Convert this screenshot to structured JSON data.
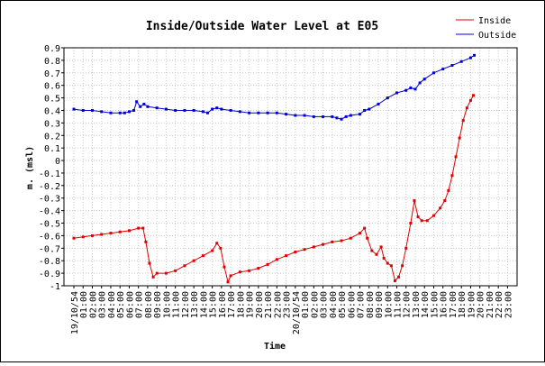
{
  "chart_data": {
    "type": "line",
    "title": "Inside/Outside Water Level at E05",
    "xlabel": "Time",
    "ylabel": "m. (msl)",
    "ylim": [
      -1,
      0.9
    ],
    "yticks": [
      0.9,
      0.8,
      0.7,
      0.6,
      0.5,
      0.4,
      0.3,
      0.2,
      0.1,
      0,
      -0.1,
      -0.2,
      -0.3,
      -0.4,
      -0.5,
      -0.6,
      -0.7,
      -0.8,
      -0.9,
      -1
    ],
    "xticks": [
      "19/10/54",
      "01:00",
      "02:00",
      "03:00",
      "04:00",
      "05:00",
      "06:00",
      "07:00",
      "08:00",
      "09:00",
      "10:00",
      "11:00",
      "12:00",
      "13:00",
      "14:00",
      "15:00",
      "16:00",
      "17:00",
      "18:00",
      "19:00",
      "20:00",
      "21:00",
      "22:00",
      "23:00",
      "20/10/54",
      "01:00",
      "02:00",
      "03:00",
      "04:00",
      "05:00",
      "06:00",
      "07:00",
      "08:00",
      "09:00",
      "10:00",
      "11:00",
      "12:00",
      "13:00",
      "14:00",
      "15:00",
      "16:00",
      "17:00",
      "18:00",
      "19:00",
      "20:00",
      "21:00",
      "22:00",
      "23:00"
    ],
    "grid": true,
    "legend_position": "top-right",
    "series": [
      {
        "name": "Inside",
        "color": "#e00000",
        "points": [
          [
            0,
            -0.62
          ],
          [
            1,
            -0.61
          ],
          [
            2,
            -0.6
          ],
          [
            3,
            -0.59
          ],
          [
            4,
            -0.58
          ],
          [
            5,
            -0.57
          ],
          [
            6,
            -0.56
          ],
          [
            7,
            -0.54
          ],
          [
            7.5,
            -0.54
          ],
          [
            7.8,
            -0.65
          ],
          [
            8.2,
            -0.82
          ],
          [
            8.6,
            -0.93
          ],
          [
            9,
            -0.9
          ],
          [
            10,
            -0.9
          ],
          [
            11,
            -0.88
          ],
          [
            12,
            -0.84
          ],
          [
            13,
            -0.8
          ],
          [
            14,
            -0.76
          ],
          [
            15,
            -0.72
          ],
          [
            15.5,
            -0.66
          ],
          [
            15.9,
            -0.7
          ],
          [
            16.3,
            -0.85
          ],
          [
            16.7,
            -0.97
          ],
          [
            17,
            -0.92
          ],
          [
            18,
            -0.89
          ],
          [
            19,
            -0.88
          ],
          [
            20,
            -0.86
          ],
          [
            21,
            -0.83
          ],
          [
            22,
            -0.79
          ],
          [
            23,
            -0.76
          ],
          [
            24,
            -0.73
          ],
          [
            25,
            -0.71
          ],
          [
            26,
            -0.69
          ],
          [
            27,
            -0.67
          ],
          [
            28,
            -0.65
          ],
          [
            29,
            -0.64
          ],
          [
            30,
            -0.62
          ],
          [
            31,
            -0.58
          ],
          [
            31.5,
            -0.54
          ],
          [
            31.8,
            -0.62
          ],
          [
            32.3,
            -0.72
          ],
          [
            32.8,
            -0.75
          ],
          [
            33.3,
            -0.69
          ],
          [
            33.6,
            -0.78
          ],
          [
            34,
            -0.82
          ],
          [
            34.4,
            -0.84
          ],
          [
            34.8,
            -0.96
          ],
          [
            35.2,
            -0.93
          ],
          [
            35.6,
            -0.84
          ],
          [
            36,
            -0.7
          ],
          [
            36.5,
            -0.5
          ],
          [
            36.9,
            -0.32
          ],
          [
            37.3,
            -0.45
          ],
          [
            37.7,
            -0.48
          ],
          [
            38.3,
            -0.48
          ],
          [
            39,
            -0.44
          ],
          [
            39.7,
            -0.38
          ],
          [
            40.2,
            -0.32
          ],
          [
            40.6,
            -0.24
          ],
          [
            41,
            -0.12
          ],
          [
            41.4,
            0.03
          ],
          [
            41.8,
            0.18
          ],
          [
            42.2,
            0.32
          ],
          [
            42.6,
            0.42
          ],
          [
            43,
            0.48
          ],
          [
            43.3,
            0.52
          ]
        ]
      },
      {
        "name": "Outside",
        "color": "#0000dd",
        "points": [
          [
            0,
            0.41
          ],
          [
            1,
            0.4
          ],
          [
            2,
            0.4
          ],
          [
            3,
            0.39
          ],
          [
            4,
            0.38
          ],
          [
            5,
            0.38
          ],
          [
            5.5,
            0.38
          ],
          [
            6,
            0.39
          ],
          [
            6.5,
            0.4
          ],
          [
            6.8,
            0.47
          ],
          [
            7.2,
            0.43
          ],
          [
            7.6,
            0.45
          ],
          [
            8,
            0.43
          ],
          [
            9,
            0.42
          ],
          [
            10,
            0.41
          ],
          [
            11,
            0.4
          ],
          [
            12,
            0.4
          ],
          [
            13,
            0.4
          ],
          [
            14,
            0.39
          ],
          [
            14.5,
            0.38
          ],
          [
            15,
            0.41
          ],
          [
            15.5,
            0.42
          ],
          [
            16,
            0.41
          ],
          [
            17,
            0.4
          ],
          [
            18,
            0.39
          ],
          [
            19,
            0.38
          ],
          [
            20,
            0.38
          ],
          [
            21,
            0.38
          ],
          [
            22,
            0.38
          ],
          [
            23,
            0.37
          ],
          [
            24,
            0.36
          ],
          [
            25,
            0.36
          ],
          [
            26,
            0.35
          ],
          [
            27,
            0.35
          ],
          [
            28,
            0.35
          ],
          [
            28.5,
            0.34
          ],
          [
            29,
            0.33
          ],
          [
            29.5,
            0.35
          ],
          [
            30,
            0.36
          ],
          [
            31,
            0.37
          ],
          [
            31.5,
            0.4
          ],
          [
            32,
            0.41
          ],
          [
            33,
            0.45
          ],
          [
            34,
            0.5
          ],
          [
            35,
            0.54
          ],
          [
            36,
            0.56
          ],
          [
            36.5,
            0.58
          ],
          [
            37,
            0.57
          ],
          [
            37.5,
            0.62
          ],
          [
            38,
            0.65
          ],
          [
            39,
            0.7
          ],
          [
            40,
            0.73
          ],
          [
            41,
            0.76
          ],
          [
            42,
            0.79
          ],
          [
            43,
            0.82
          ],
          [
            43.4,
            0.84
          ]
        ]
      }
    ]
  }
}
